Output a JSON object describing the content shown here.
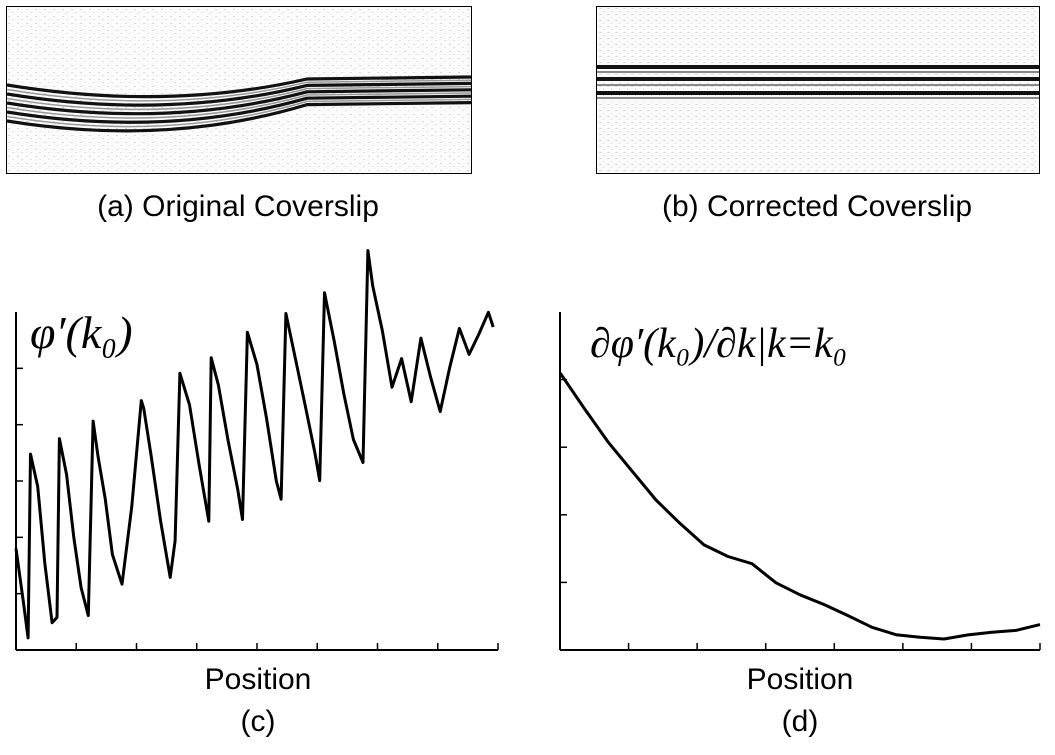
{
  "panels": {
    "a": {
      "caption": "(a) Original Coverslip"
    },
    "b": {
      "caption": "(b) Corrected Coverslip"
    },
    "c": {
      "caption": "(c)"
    },
    "d": {
      "caption": "(d)"
    }
  },
  "chart_data": [
    {
      "type": "line",
      "panel": "c",
      "ylabel_symbol": "φ′(k₀)",
      "xlabel": "Position",
      "xlim": [
        0,
        100
      ],
      "ylim": [
        0,
        1
      ],
      "grid": false,
      "x_minor_ticks": 8,
      "y_minor_ticks": 5,
      "series": [
        {
          "name": "",
          "x": [
            0,
            1.5,
            2.5,
            3,
            4.5,
            6,
            7.5,
            8.5,
            9,
            10.5,
            12,
            13.5,
            15,
            16,
            17,
            18.5,
            20,
            22,
            24,
            26,
            26.5,
            28,
            30,
            32,
            33,
            34,
            36,
            38,
            40,
            40.5,
            42,
            44,
            46,
            47,
            48,
            50,
            52,
            54,
            55,
            56,
            58,
            60,
            62,
            63,
            64,
            66,
            68,
            70,
            72,
            73,
            74,
            76,
            78,
            80,
            82,
            84,
            86,
            88,
            90,
            92,
            94,
            96,
            98,
            99
          ],
          "y": [
            0.3,
            0.15,
            0.04,
            0.58,
            0.48,
            0.25,
            0.08,
            0.1,
            0.63,
            0.52,
            0.33,
            0.18,
            0.1,
            0.68,
            0.58,
            0.45,
            0.28,
            0.19,
            0.42,
            0.74,
            0.72,
            0.58,
            0.38,
            0.21,
            0.32,
            0.82,
            0.73,
            0.55,
            0.38,
            0.86,
            0.78,
            0.62,
            0.48,
            0.39,
            0.94,
            0.84,
            0.68,
            0.5,
            0.45,
            1.0,
            0.86,
            0.72,
            0.58,
            0.5,
            1.06,
            0.92,
            0.76,
            0.62,
            0.55,
            1.18,
            1.08,
            0.95,
            0.78,
            0.86,
            0.73,
            0.92,
            0.81,
            0.71,
            0.84,
            0.95,
            0.87,
            0.93,
            1.0,
            0.96
          ]
        }
      ]
    },
    {
      "type": "line",
      "panel": "d",
      "ylabel_symbol": "∂φ′(k₀)/∂k|k=k₀",
      "xlabel": "Position",
      "xlim": [
        0,
        100
      ],
      "ylim": [
        0,
        1
      ],
      "grid": false,
      "x_minor_ticks": 7,
      "y_minor_ticks": 4,
      "series": [
        {
          "name": "",
          "x": [
            0,
            5,
            10,
            15,
            20,
            25,
            30,
            35,
            40,
            45,
            50,
            55,
            60,
            65,
            70,
            75,
            80,
            85,
            90,
            95,
            100
          ],
          "y": [
            0.82,
            0.72,
            0.62,
            0.53,
            0.44,
            0.37,
            0.31,
            0.28,
            0.26,
            0.2,
            0.16,
            0.13,
            0.1,
            0.07,
            0.05,
            0.04,
            0.03,
            0.04,
            0.05,
            0.06,
            0.08
          ]
        }
      ]
    }
  ]
}
